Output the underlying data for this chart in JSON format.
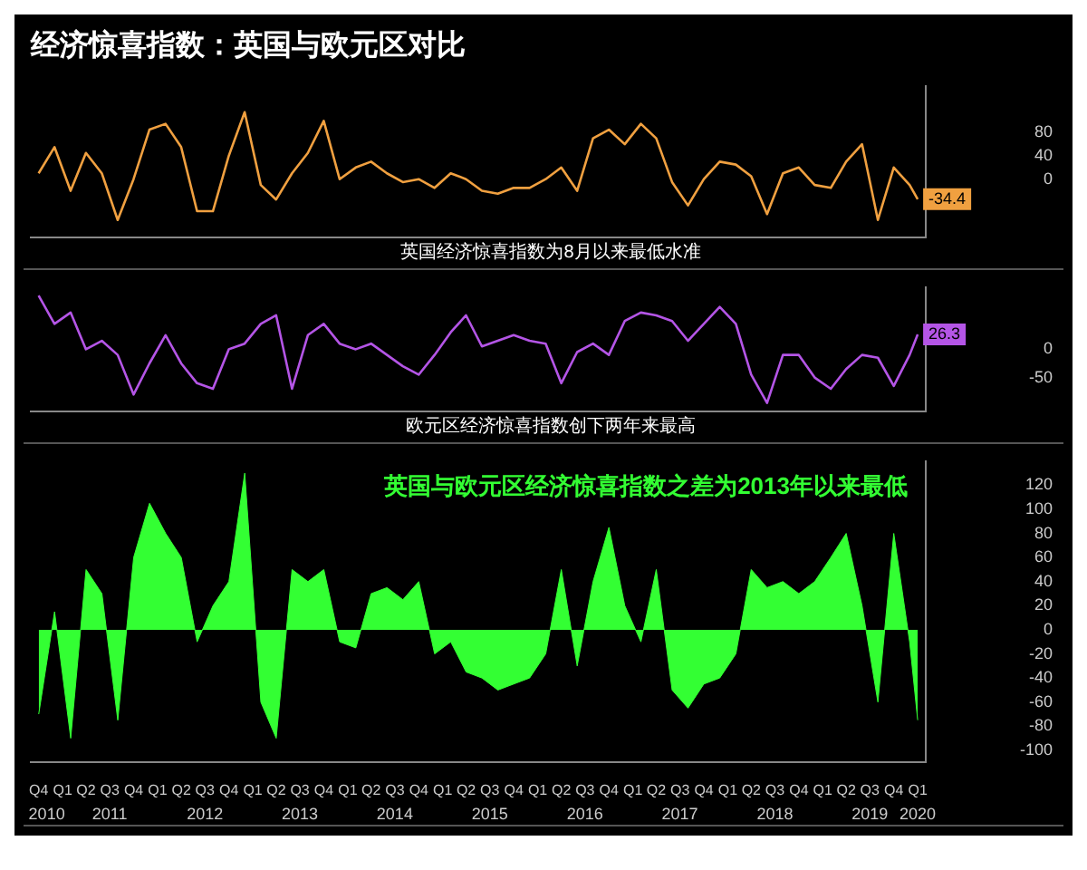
{
  "chart_data": [
    {
      "type": "line",
      "title": "经济惊喜指数：英国与欧元区对比",
      "tick_labels": "y",
      "x": [
        "2010-10",
        "2010-12",
        "2011-02",
        "2011-04",
        "2011-06",
        "2011-08",
        "2011-10",
        "2011-12",
        "2012-02",
        "2012-04",
        "2012-06",
        "2012-08",
        "2012-10",
        "2012-12",
        "2013-02",
        "2013-04",
        "2013-06",
        "2013-08",
        "2013-10",
        "2013-12",
        "2014-02",
        "2014-04",
        "2014-06",
        "2014-08",
        "2014-10",
        "2014-12",
        "2015-02",
        "2015-04",
        "2015-06",
        "2015-08",
        "2015-10",
        "2015-12",
        "2016-02",
        "2016-04",
        "2016-06",
        "2016-08",
        "2016-10",
        "2016-12",
        "2017-02",
        "2017-04",
        "2017-06",
        "2017-08",
        "2017-10",
        "2017-12",
        "2018-02",
        "2018-04",
        "2018-06",
        "2018-08",
        "2018-10",
        "2018-12",
        "2019-02",
        "2019-04",
        "2019-06",
        "2019-08",
        "2019-10",
        "2019-12",
        "2020-01"
      ],
      "xlim": [
        "2010-09",
        "2020-02"
      ],
      "ylim": [
        -100,
        160
      ],
      "yticks": [
        0,
        40,
        80
      ],
      "series": [
        {
          "color": "#f0a040",
          "values": [
            10,
            55,
            -20,
            45,
            10,
            -70,
            0,
            85,
            95,
            55,
            -55,
            -55,
            40,
            115,
            -10,
            -35,
            10,
            45,
            100,
            0,
            20,
            30,
            10,
            -5,
            0,
            -15,
            10,
            0,
            -20,
            -25,
            -15,
            -15,
            0,
            20,
            -20,
            70,
            85,
            60,
            95,
            70,
            -5,
            -45,
            0,
            30,
            25,
            5,
            -60,
            10,
            20,
            -10,
            -15,
            30,
            60,
            -70,
            20,
            -10,
            -34.4
          ]
        }
      ],
      "annotations": [
        "英国经济惊喜指数为8月以来最低水准",
        {
          "text": "-34.4",
          "x": "2020-01",
          "y": -34.4
        }
      ]
    },
    {
      "type": "line",
      "tick_labels": "y",
      "x": [
        "2010-10",
        "2010-12",
        "2011-02",
        "2011-04",
        "2011-06",
        "2011-08",
        "2011-10",
        "2011-12",
        "2012-02",
        "2012-04",
        "2012-06",
        "2012-08",
        "2012-10",
        "2012-12",
        "2013-02",
        "2013-04",
        "2013-06",
        "2013-08",
        "2013-10",
        "2013-12",
        "2014-02",
        "2014-04",
        "2014-06",
        "2014-08",
        "2014-10",
        "2014-12",
        "2015-02",
        "2015-04",
        "2015-06",
        "2015-08",
        "2015-10",
        "2015-12",
        "2016-02",
        "2016-04",
        "2016-06",
        "2016-08",
        "2016-10",
        "2016-12",
        "2017-02",
        "2017-04",
        "2017-06",
        "2017-08",
        "2017-10",
        "2017-12",
        "2018-02",
        "2018-04",
        "2018-06",
        "2018-08",
        "2018-10",
        "2018-12",
        "2019-02",
        "2019-04",
        "2019-06",
        "2019-08",
        "2019-10",
        "2019-12",
        "2020-01"
      ],
      "xlim": [
        "2010-09",
        "2020-02"
      ],
      "ylim": [
        -110,
        110
      ],
      "yticks": [
        -50,
        0
      ],
      "series": [
        {
          "color": "#b455e6",
          "values": [
            95,
            45,
            65,
            0,
            15,
            -10,
            -80,
            -25,
            25,
            -25,
            -60,
            -70,
            0,
            10,
            45,
            60,
            -70,
            25,
            45,
            10,
            0,
            10,
            -10,
            -30,
            -45,
            -10,
            30,
            60,
            5,
            15,
            25,
            15,
            10,
            -60,
            -5,
            10,
            -10,
            50,
            65,
            60,
            50,
            15,
            45,
            75,
            45,
            -45,
            -95,
            -10,
            -10,
            -50,
            -70,
            -35,
            -10,
            -15,
            -65,
            -10,
            26.3
          ]
        }
      ],
      "annotations": [
        "欧元区经济惊喜指数创下两年来最高",
        {
          "text": "26.3",
          "x": "2020-01",
          "y": 26.3
        }
      ]
    },
    {
      "type": "area",
      "x": [
        "2010-10",
        "2010-12",
        "2011-02",
        "2011-04",
        "2011-06",
        "2011-08",
        "2011-10",
        "2011-12",
        "2012-02",
        "2012-04",
        "2012-06",
        "2012-08",
        "2012-10",
        "2012-12",
        "2013-02",
        "2013-04",
        "2013-06",
        "2013-08",
        "2013-10",
        "2013-12",
        "2014-02",
        "2014-04",
        "2014-06",
        "2014-08",
        "2014-10",
        "2014-12",
        "2015-02",
        "2015-04",
        "2015-06",
        "2015-08",
        "2015-10",
        "2015-12",
        "2016-02",
        "2016-04",
        "2016-06",
        "2016-08",
        "2016-10",
        "2016-12",
        "2017-02",
        "2017-04",
        "2017-06",
        "2017-08",
        "2017-10",
        "2017-12",
        "2018-02",
        "2018-04",
        "2018-06",
        "2018-08",
        "2018-10",
        "2018-12",
        "2019-02",
        "2019-04",
        "2019-06",
        "2019-08",
        "2019-10",
        "2019-12",
        "2020-01"
      ],
      "xlim": [
        "2010-09",
        "2020-02"
      ],
      "ylim": [
        -110,
        140
      ],
      "yticks": [
        -100,
        -80,
        -60,
        -40,
        -20,
        0,
        20,
        40,
        60,
        80,
        100,
        120
      ],
      "x2lim": [
        "2010-09",
        "2020-02"
      ],
      "x2ticks": [
        {
          "value": "2010-11",
          "label": "2010"
        },
        {
          "value": "2011-07",
          "label": "2011"
        },
        {
          "value": "2012-07",
          "label": "2012"
        },
        {
          "value": "2013-07",
          "label": "2013"
        },
        {
          "value": "2014-07",
          "label": "2014"
        },
        {
          "value": "2015-07",
          "label": "2015"
        },
        {
          "value": "2016-07",
          "label": "2016"
        },
        {
          "value": "2017-07",
          "label": "2017"
        },
        {
          "value": "2018-07",
          "label": "2018"
        },
        {
          "value": "2019-07",
          "label": "2019"
        },
        {
          "value": "2020-01",
          "label": "2020"
        }
      ],
      "xticks": [
        {
          "value": "2010-10",
          "label": "Q4"
        },
        {
          "value": "2011-01",
          "label": "Q1"
        },
        {
          "value": "2011-04",
          "label": "Q2"
        },
        {
          "value": "2011-07",
          "label": "Q3"
        },
        {
          "value": "2011-10",
          "label": "Q4"
        },
        {
          "value": "2012-01",
          "label": "Q1"
        },
        {
          "value": "2012-04",
          "label": "Q2"
        },
        {
          "value": "2012-07",
          "label": "Q3"
        },
        {
          "value": "2012-10",
          "label": "Q4"
        },
        {
          "value": "2013-01",
          "label": "Q1"
        },
        {
          "value": "2013-04",
          "label": "Q2"
        },
        {
          "value": "2013-07",
          "label": "Q3"
        },
        {
          "value": "2013-10",
          "label": "Q4"
        },
        {
          "value": "2014-01",
          "label": "Q1"
        },
        {
          "value": "2014-04",
          "label": "Q2"
        },
        {
          "value": "2014-07",
          "label": "Q3"
        },
        {
          "value": "2014-10",
          "label": "Q4"
        },
        {
          "value": "2015-01",
          "label": "Q1"
        },
        {
          "value": "2015-04",
          "label": "Q2"
        },
        {
          "value": "2015-07",
          "label": "Q3"
        },
        {
          "value": "2015-10",
          "label": "Q4"
        },
        {
          "value": "2016-01",
          "label": "Q1"
        },
        {
          "value": "2016-04",
          "label": "Q2"
        },
        {
          "value": "2016-07",
          "label": "Q3"
        },
        {
          "value": "2016-10",
          "label": "Q4"
        },
        {
          "value": "2017-01",
          "label": "Q1"
        },
        {
          "value": "2017-04",
          "label": "Q2"
        },
        {
          "value": "2017-07",
          "label": "Q3"
        },
        {
          "value": "2017-10",
          "label": "Q4"
        },
        {
          "value": "2018-01",
          "label": "Q1"
        },
        {
          "value": "2018-04",
          "label": "Q2"
        },
        {
          "value": "2018-07",
          "label": "Q3"
        },
        {
          "value": "2018-10",
          "label": "Q4"
        },
        {
          "value": "2019-01",
          "label": "Q1"
        },
        {
          "value": "2019-04",
          "label": "Q2"
        },
        {
          "value": "2019-07",
          "label": "Q3"
        },
        {
          "value": "2019-10",
          "label": "Q4"
        },
        {
          "value": "2020-01",
          "label": "Q1"
        }
      ],
      "series": [
        {
          "color": "#33ff33",
          "values": [
            -70,
            15,
            -90,
            50,
            30,
            -75,
            60,
            105,
            80,
            60,
            -10,
            20,
            40,
            130,
            -60,
            -90,
            50,
            40,
            50,
            -10,
            -15,
            30,
            35,
            25,
            40,
            -20,
            -10,
            -35,
            -40,
            -50,
            -45,
            -40,
            -20,
            50,
            -30,
            40,
            85,
            20,
            -10,
            50,
            -50,
            -65,
            -45,
            -40,
            -20,
            50,
            35,
            40,
            30,
            40,
            60,
            80,
            20,
            -60,
            80,
            -10,
            -75
          ]
        }
      ],
      "annotations": [
        "英国与欧元区经济惊喜指数之差为2013年以来最低"
      ]
    }
  ]
}
